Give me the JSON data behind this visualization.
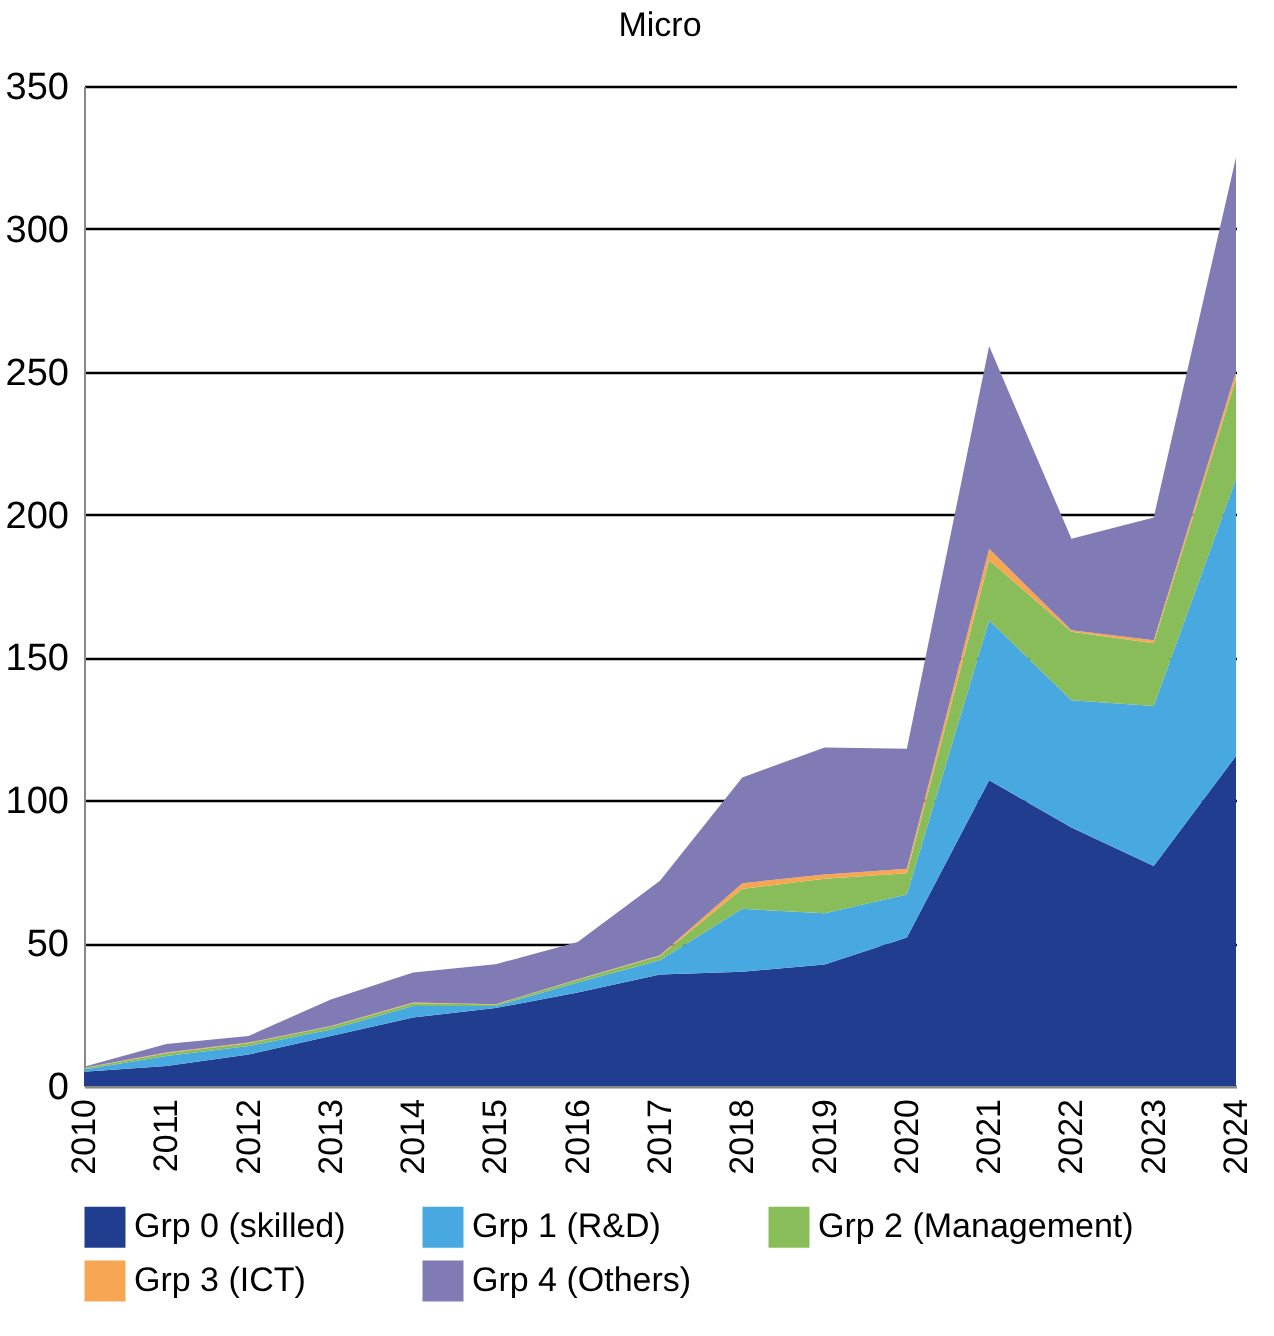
{
  "chart_data": {
    "type": "area",
    "title": "Micro",
    "stacked": true,
    "categories": [
      "2010",
      "2011",
      "2012",
      "2013",
      "2014",
      "2015",
      "2016",
      "2017",
      "2018",
      "2019",
      "2020",
      "2021",
      "2022",
      "2023",
      "2024"
    ],
    "series": [
      {
        "name": "Grp 0 (skilled)",
        "color": "#213d8f",
        "values": [
          5,
          7,
          11,
          17.5,
          24,
          27.3,
          32.7,
          39,
          40,
          42.5,
          52,
          107,
          90.5,
          77,
          115.5
        ]
      },
      {
        "name": "Grp 1 (R&D)",
        "color": "#47a9e0",
        "values": [
          0.8,
          3.5,
          3,
          2.3,
          4,
          0.7,
          3.5,
          5,
          22,
          18,
          15,
          56,
          44.5,
          56,
          97
        ]
      },
      {
        "name": "Grp 2 (Management)",
        "color": "#88bd5a",
        "values": [
          0.5,
          1,
          1,
          1,
          1,
          0.5,
          1,
          1.5,
          7,
          12,
          7.5,
          21,
          24,
          22,
          35
        ]
      },
      {
        "name": "Grp 3 (ICT)",
        "color": "#f7a753",
        "values": [
          0.1,
          0.2,
          0.2,
          0.2,
          0.2,
          0.1,
          0.2,
          0.3,
          2,
          1.5,
          1.5,
          4,
          0.5,
          1,
          2.5
        ]
      },
      {
        "name": "Grp 4 (Others)",
        "color": "#807ab5",
        "values": [
          0.3,
          3,
          2.3,
          9.3,
          10.5,
          14,
          13,
          26,
          37,
          44.5,
          42,
          71,
          32,
          43,
          75
        ]
      }
    ],
    "ylim": [
      0,
      350
    ],
    "yticks": [
      0,
      50,
      100,
      150,
      200,
      250,
      300,
      350
    ],
    "grid": "y",
    "legend": "bottom"
  }
}
